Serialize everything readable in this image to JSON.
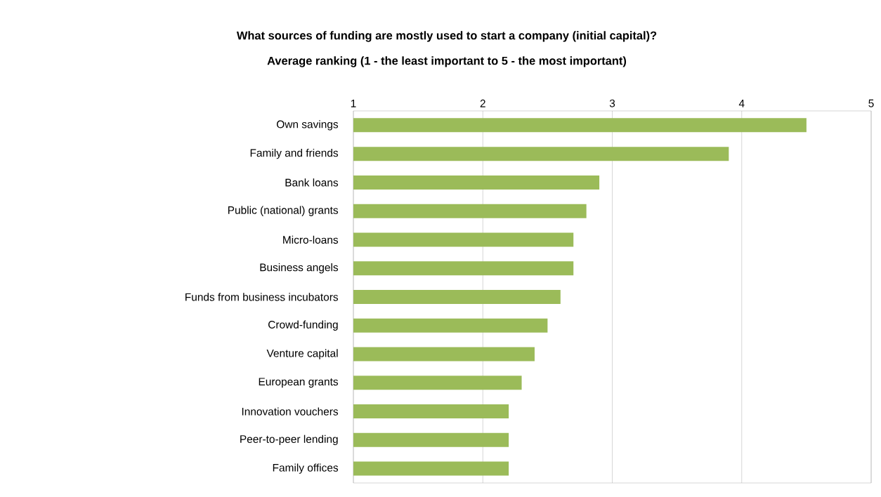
{
  "chart_data": {
    "type": "bar",
    "orientation": "horizontal",
    "title": "What sources of funding are mostly used to start a company (initial capital)?",
    "subtitle": "Average ranking (1 - the least important to 5 - the most important)",
    "categories": [
      "Own savings",
      "Family and friends",
      "Bank loans",
      "Public (national) grants",
      "Micro-loans",
      "Business angels",
      "Funds from business incubators",
      "Crowd-funding",
      "Venture capital",
      "European grants",
      "Innovation vouchers",
      "Peer-to-peer lending",
      "Family offices"
    ],
    "values": [
      4.5,
      3.9,
      2.9,
      2.8,
      2.7,
      2.7,
      2.6,
      2.5,
      2.4,
      2.3,
      2.2,
      2.2,
      2.2
    ],
    "color": "#9bbb59",
    "xlim": [
      1,
      5
    ],
    "xticks": [
      1,
      2,
      3,
      4,
      5
    ],
    "grid": "x"
  }
}
